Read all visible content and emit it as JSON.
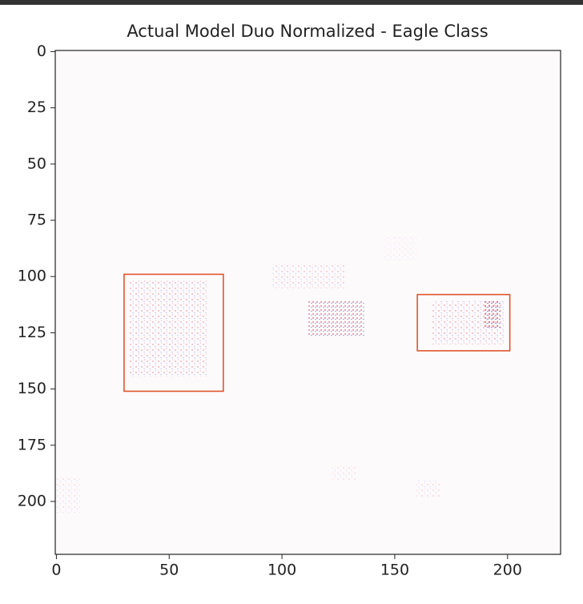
{
  "chart_data": {
    "type": "image",
    "title": "Actual Model Duo Normalized - Eagle Class",
    "xlim": [
      -0.5,
      223.5
    ],
    "ylim": [
      223.5,
      -0.5
    ],
    "xticks": [
      0,
      50,
      100,
      150,
      200
    ],
    "yticks": [
      0,
      25,
      50,
      75,
      100,
      125,
      150,
      175,
      200
    ],
    "boxes": [
      {
        "x": [
          30,
          74
        ],
        "y": [
          99,
          151
        ]
      },
      {
        "x": [
          160,
          201
        ],
        "y": [
          108,
          133
        ]
      }
    ],
    "box_color": "#e0562c"
  }
}
